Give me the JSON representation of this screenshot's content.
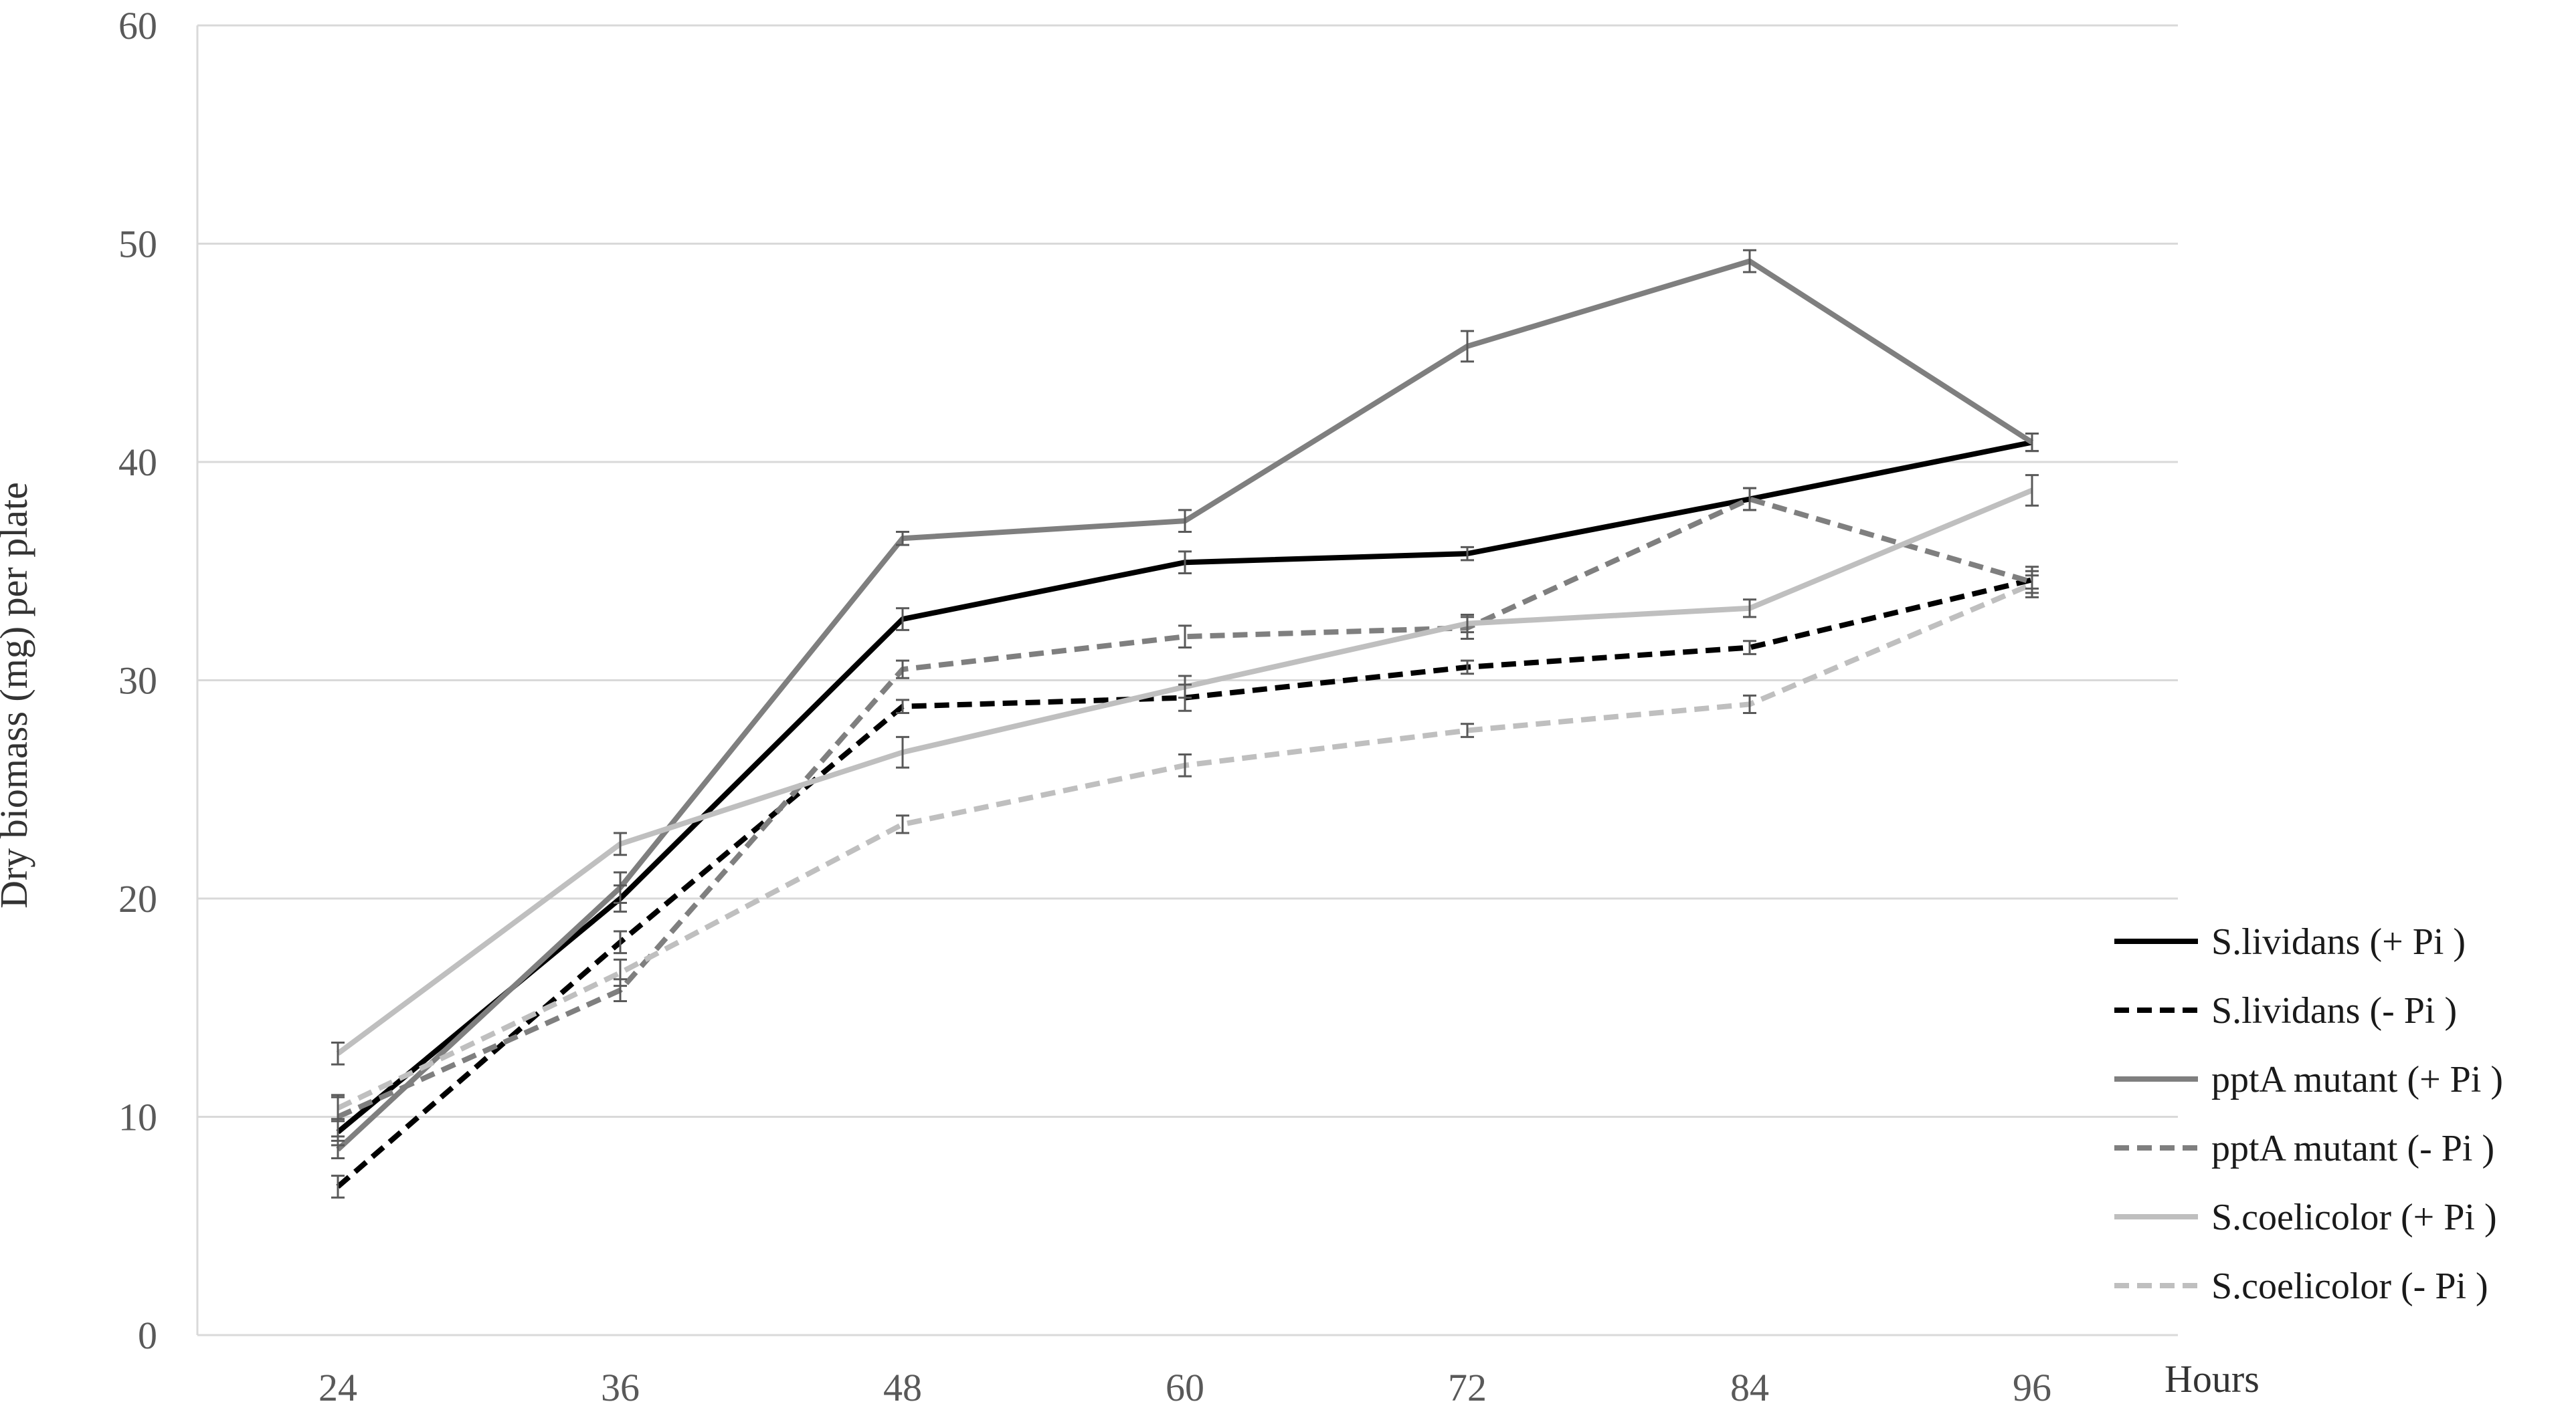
{
  "chart_data": {
    "type": "line",
    "title": "",
    "xlabel": "Hours",
    "ylabel": "Dry biomass (mg) per plate",
    "x": [
      24,
      36,
      48,
      60,
      72,
      84,
      96
    ],
    "ylim": [
      0,
      60
    ],
    "yticks": [
      0,
      10,
      20,
      30,
      40,
      50,
      60
    ],
    "grid": "horizontal",
    "legend_position": "right",
    "series": [
      {
        "name": "S.lividans (+ Pi )",
        "color": "#000000",
        "dash": "solid",
        "values": [
          9.3,
          20.0,
          32.8,
          35.4,
          35.8,
          38.3,
          40.9
        ],
        "errors": [
          0.6,
          0.6,
          0.5,
          0.5,
          0.3,
          0.5,
          0.4
        ]
      },
      {
        "name": "S.lividans (- Pi )",
        "color": "#000000",
        "dash": "dashed",
        "values": [
          6.8,
          18.0,
          28.8,
          29.2,
          30.6,
          31.5,
          34.6
        ],
        "errors": [
          0.5,
          0.5,
          0.3,
          0.6,
          0.3,
          0.3,
          0.4
        ]
      },
      {
        "name": "pptA mutant (+ Pi )",
        "color": "#7f7f7f",
        "dash": "solid",
        "values": [
          8.5,
          20.5,
          36.5,
          37.3,
          45.3,
          49.2,
          40.9
        ],
        "errors": [
          0.4,
          0.7,
          0.3,
          0.5,
          0.7,
          0.5,
          0.4
        ]
      },
      {
        "name": "pptA mutant (- Pi )",
        "color": "#7f7f7f",
        "dash": "dashed",
        "values": [
          10.0,
          15.8,
          30.5,
          32.0,
          32.4,
          38.3,
          34.5
        ],
        "errors": [
          0.9,
          0.5,
          0.4,
          0.5,
          0.5,
          0.5,
          0.7
        ]
      },
      {
        "name": "S.coelicolor (+ Pi )",
        "color": "#bfbfbf",
        "dash": "solid",
        "values": [
          12.9,
          22.5,
          26.7,
          29.7,
          32.6,
          33.3,
          38.7
        ],
        "errors": [
          0.5,
          0.5,
          0.7,
          0.5,
          0.4,
          0.4,
          0.7
        ]
      },
      {
        "name": "S.coelicolor (- Pi )",
        "color": "#bfbfbf",
        "dash": "dashed",
        "values": [
          10.4,
          16.6,
          23.4,
          26.1,
          27.7,
          28.9,
          34.4
        ],
        "errors": [
          0.6,
          0.6,
          0.4,
          0.5,
          0.3,
          0.4,
          0.4
        ]
      }
    ]
  }
}
